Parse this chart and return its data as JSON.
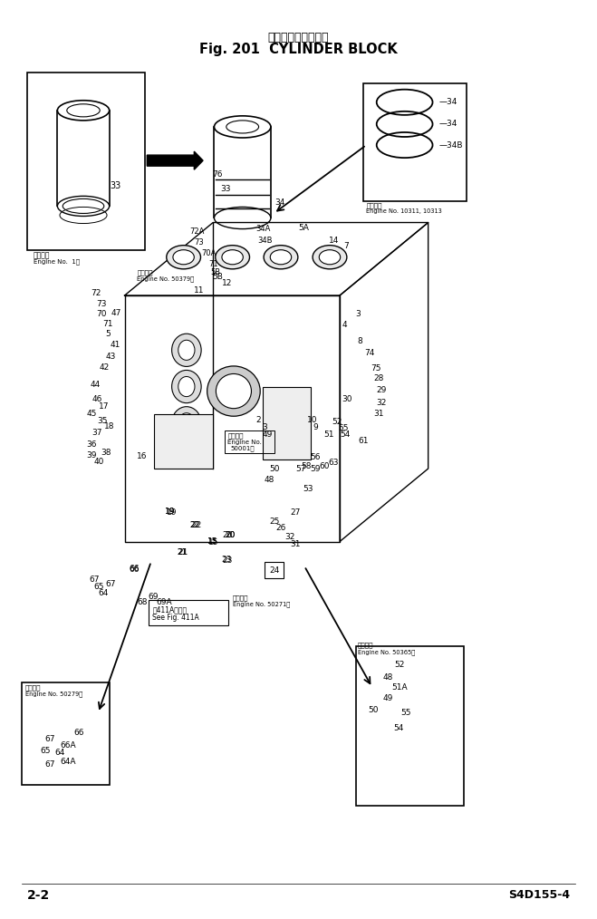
{
  "title_japanese": "シリンダ　ブロック",
  "title_english": "Fig. 201  CYLINDER BLOCK",
  "page_number": "2-2",
  "model_number": "S4D155-4",
  "background_color": "#ffffff",
  "fig_width": 6.59,
  "fig_height": 10.14,
  "dpi": 100
}
